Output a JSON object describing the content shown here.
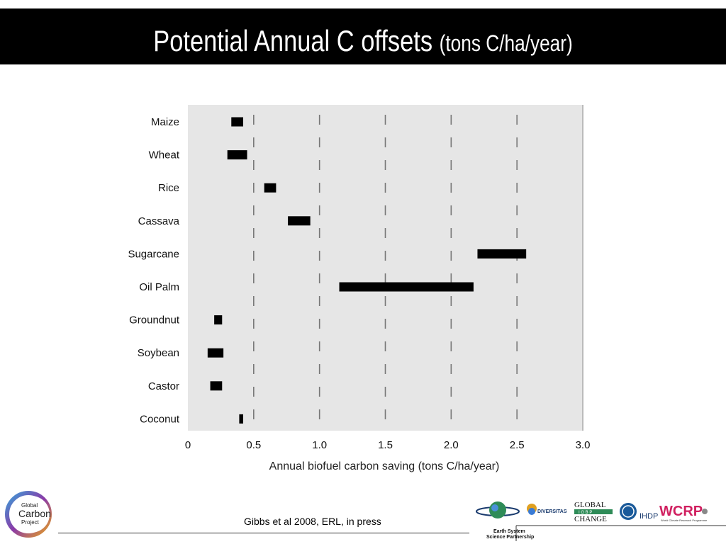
{
  "slide": {
    "title_main": "Potential Annual C offsets",
    "title_unit": "(tons C/ha/year)",
    "citation": "Gibbs et al 2008, ERL, in press"
  },
  "logos": {
    "gcp_line1": "Global",
    "gcp_line2": "Carbon",
    "gcp_line3": "Project",
    "essp_line1": "Earth System",
    "essp_line2": "Science Partnership",
    "diversitas": "DIVERSITAS",
    "global_change_line1": "GLOBAL",
    "global_change_igbp": "I G B P",
    "global_change_line2": "CHANGE",
    "ihdp": "IHDP",
    "wcrp": "WCRP",
    "wcrp_sub": "World Climate Research Programme"
  },
  "chart_data": {
    "type": "bar",
    "orientation": "horizontal-range",
    "xlabel": "Annual biofuel carbon saving (tons C/ha/year)",
    "xlim": [
      0,
      3.0
    ],
    "xticks": [
      "0",
      "0.5",
      "1.0",
      "1.5",
      "2.0",
      "2.5",
      "3.0"
    ],
    "grid": "vertical dashed",
    "colors": {
      "plot_bg": "#e6e6e6",
      "bar": "#000000",
      "grid": "#777777"
    },
    "categories": [
      "Maize",
      "Wheat",
      "Rice",
      "Cassava",
      "Sugarcane",
      "Oil Palm",
      "Groundnut",
      "Soybean",
      "Castor",
      "Coconut"
    ],
    "ranges": [
      [
        0.33,
        0.42
      ],
      [
        0.3,
        0.45
      ],
      [
        0.58,
        0.67
      ],
      [
        0.76,
        0.93
      ],
      [
        2.2,
        2.57
      ],
      [
        1.15,
        2.17
      ],
      [
        0.2,
        0.26
      ],
      [
        0.15,
        0.27
      ],
      [
        0.17,
        0.26
      ],
      [
        0.39,
        0.42
      ]
    ]
  }
}
